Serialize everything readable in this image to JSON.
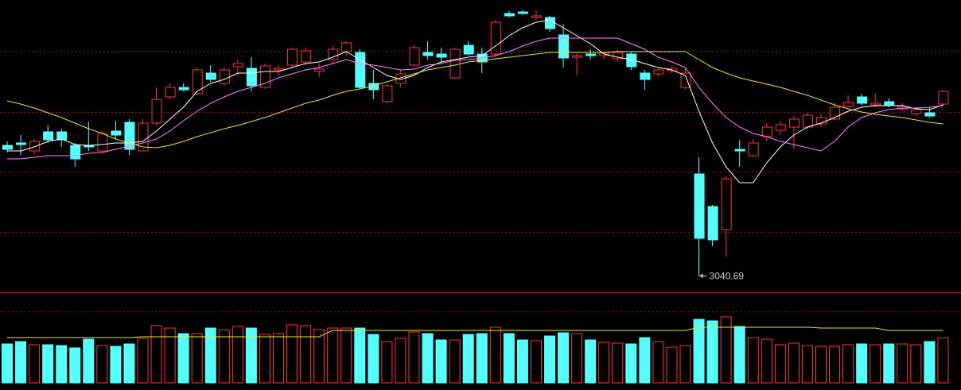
{
  "chart_data": {
    "type": "candlestick",
    "up_color": "#ff3232",
    "down_color": "#54ffff",
    "ylim": [
      3020,
      3388
    ],
    "open": [
      3205,
      3208,
      3198,
      3222,
      3222,
      3205,
      3205,
      3198,
      3223,
      3234,
      3198,
      3233,
      3266,
      3278,
      3270,
      3296,
      3283,
      3304,
      3302,
      3278,
      3300,
      3306,
      3310,
      3298,
      3313,
      3323,
      3322,
      3283,
      3260,
      3283,
      3306,
      3322,
      3320,
      3290,
      3331,
      3320,
      3320,
      3371,
      3373,
      3366,
      3366,
      3344,
      3316,
      3320,
      3318,
      3314,
      3320,
      3296,
      3295,
      3299,
      3278,
      3169,
      3128,
      3099,
      3200,
      3192,
      3216,
      3224,
      3228,
      3228,
      3232,
      3238,
      3254,
      3266,
      3256,
      3260,
      3251,
      3245,
      3246,
      3257
    ],
    "high": [
      3210,
      3218,
      3213,
      3230,
      3226,
      3208,
      3235,
      3223,
      3236,
      3238,
      3238,
      3278,
      3283,
      3283,
      3303,
      3306,
      3303,
      3313,
      3316,
      3308,
      3306,
      3328,
      3328,
      3308,
      3330,
      3336,
      3326,
      3300,
      3283,
      3300,
      3331,
      3336,
      3328,
      3328,
      3336,
      3328,
      3363,
      3374,
      3375,
      3375,
      3368,
      3358,
      3320,
      3326,
      3323,
      3326,
      3323,
      3300,
      3302,
      3304,
      3303,
      3190,
      3130,
      3166,
      3212,
      3213,
      3233,
      3236,
      3242,
      3246,
      3245,
      3258,
      3268,
      3270,
      3270,
      3264,
      3258,
      3253,
      3253,
      3275
    ],
    "low": [
      3196,
      3193,
      3193,
      3208,
      3203,
      3178,
      3198,
      3196,
      3213,
      3193,
      3198,
      3230,
      3263,
      3273,
      3268,
      3285,
      3280,
      3293,
      3273,
      3276,
      3293,
      3303,
      3306,
      3291,
      3308,
      3318,
      3276,
      3263,
      3258,
      3278,
      3304,
      3313,
      3308,
      3288,
      3318,
      3296,
      3316,
      3366,
      3369,
      3363,
      3348,
      3303,
      3293,
      3313,
      3313,
      3310,
      3300,
      3275,
      3292,
      3296,
      3276,
      3040.69,
      3078,
      3065,
      3178,
      3190,
      3210,
      3218,
      3200,
      3225,
      3228,
      3236,
      3252,
      3255,
      3253,
      3253,
      3248,
      3242,
      3240,
      3255
    ],
    "close": [
      3200,
      3206,
      3210,
      3212,
      3212,
      3188,
      3203,
      3220,
      3218,
      3200,
      3233,
      3263,
      3278,
      3275,
      3300,
      3288,
      3300,
      3308,
      3280,
      3305,
      3302,
      3326,
      3324,
      3301,
      3326,
      3334,
      3278,
      3275,
      3280,
      3295,
      3328,
      3318,
      3316,
      3326,
      3320,
      3310,
      3360,
      3368,
      3371,
      3368,
      3352,
      3315,
      3318,
      3318,
      3321,
      3322,
      3304,
      3288,
      3300,
      3302,
      3296,
      3088,
      3086,
      3163,
      3198,
      3208,
      3228,
      3231,
      3238,
      3243,
      3240,
      3253,
      3259,
      3258,
      3258,
      3255,
      3254,
      3250,
      3242,
      3273
    ],
    "moving_averages": [
      {
        "color": "#ffffff",
        "values": [
          3198,
          3198,
          3203,
          3210,
          3213,
          3206,
          3205,
          3206,
          3208,
          3208,
          3210,
          3223,
          3238,
          3253,
          3273,
          3283,
          3288,
          3296,
          3296,
          3298,
          3298,
          3303,
          3308,
          3310,
          3316,
          3323,
          3313,
          3303,
          3293,
          3288,
          3293,
          3303,
          3310,
          3313,
          3316,
          3318,
          3330,
          3343,
          3353,
          3360,
          3363,
          3353,
          3343,
          3333,
          3320,
          3316,
          3313,
          3308,
          3303,
          3300,
          3293,
          3248,
          3208,
          3178,
          3158,
          3158,
          3183,
          3203,
          3218,
          3228,
          3233,
          3240,
          3248,
          3253,
          3255,
          3255,
          3255,
          3251,
          3250,
          3256
        ]
      },
      {
        "color": "#ff80ff",
        "values": [
          3188,
          3188,
          3190,
          3192,
          3192,
          3192,
          3195,
          3196,
          3200,
          3204,
          3208,
          3213,
          3223,
          3236,
          3248,
          3258,
          3266,
          3273,
          3278,
          3283,
          3290,
          3295,
          3300,
          3303,
          3308,
          3313,
          3308,
          3306,
          3303,
          3300,
          3301,
          3306,
          3308,
          3312,
          3313,
          3315,
          3318,
          3323,
          3330,
          3336,
          3340,
          3340,
          3340,
          3340,
          3340,
          3340,
          3333,
          3326,
          3316,
          3310,
          3303,
          3278,
          3258,
          3240,
          3228,
          3220,
          3216,
          3210,
          3206,
          3202,
          3198,
          3210,
          3228,
          3240,
          3246,
          3250,
          3252,
          3252,
          3253,
          3255
        ]
      },
      {
        "color": "#e6e632",
        "values": [
          3261,
          3257,
          3252,
          3246,
          3240,
          3233,
          3226,
          3220,
          3213,
          3208,
          3203,
          3202,
          3205,
          3210,
          3216,
          3221,
          3226,
          3230,
          3235,
          3240,
          3246,
          3252,
          3258,
          3262,
          3268,
          3273,
          3276,
          3280,
          3285,
          3290,
          3295,
          3300,
          3303,
          3306,
          3310,
          3312,
          3314,
          3316,
          3318,
          3320,
          3322,
          3322,
          3322,
          3322,
          3322,
          3323,
          3323,
          3323,
          3323,
          3323,
          3323,
          3313,
          3303,
          3296,
          3290,
          3286,
          3282,
          3278,
          3273,
          3268,
          3262,
          3256,
          3251,
          3247,
          3244,
          3242,
          3240,
          3237,
          3234,
          3232
        ]
      }
    ],
    "volume": {
      "ylim": [
        0,
        114
      ],
      "values": [
        49,
        52,
        48,
        48,
        47,
        44,
        55,
        47,
        46,
        49,
        56,
        72,
        69,
        62,
        62,
        69,
        67,
        71,
        69,
        61,
        62,
        73,
        72,
        67,
        69,
        69,
        69,
        61,
        52,
        56,
        64,
        62,
        54,
        54,
        61,
        62,
        70,
        62,
        54,
        53,
        59,
        63,
        62,
        54,
        51,
        50,
        49,
        57,
        52,
        45,
        47,
        80,
        78,
        83,
        71,
        57,
        55,
        48,
        50,
        47,
        46,
        46,
        48,
        49,
        48,
        49,
        49,
        48,
        52,
        57
      ],
      "ma": {
        "color": "#e6e632",
        "values": [
          57,
          57,
          57,
          57,
          57,
          57,
          57,
          57,
          57,
          57,
          58,
          58,
          58,
          58,
          58,
          58,
          58,
          58,
          58,
          58,
          58,
          58,
          58,
          58,
          66,
          66,
          66,
          66,
          66,
          66,
          66,
          66,
          66,
          66,
          66,
          66,
          66,
          66,
          66,
          66,
          66,
          66,
          66,
          66,
          66,
          66,
          66,
          66,
          66,
          66,
          66,
          70,
          70,
          70,
          70,
          70,
          70,
          70,
          70,
          70,
          69,
          69,
          69,
          69,
          69,
          66,
          66,
          66,
          66,
          66
        ]
      }
    }
  }
}
